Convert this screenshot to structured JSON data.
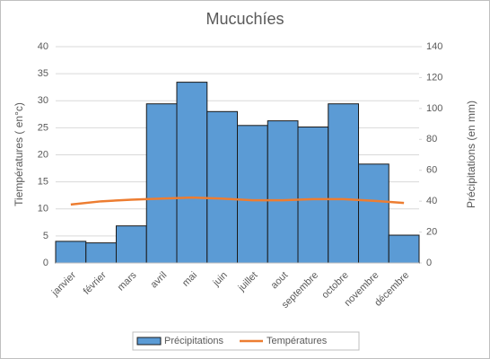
{
  "chart_data": {
    "type": "bar_line",
    "title": "Mucuchíes",
    "categories": [
      "janvier",
      "février",
      "mars",
      "avril",
      "mai",
      "juin",
      "juillet",
      "aout",
      "septembre",
      "octobre",
      "novembre",
      "décembre"
    ],
    "series": [
      {
        "name": "Précipitations",
        "type": "bar",
        "axis": "y2",
        "color": "#5b9bd5",
        "values": [
          14,
          13,
          24,
          103,
          117,
          98,
          89,
          92,
          88,
          103,
          64,
          18
        ]
      },
      {
        "name": "Températures",
        "type": "line",
        "color": "#ed7d31",
        "values": [
          10.8,
          11.4,
          11.7,
          11.9,
          12.1,
          11.9,
          11.6,
          11.6,
          11.8,
          11.8,
          11.5,
          11.1
        ]
      }
    ],
    "ylabel": "Tiempératures ( en°c)",
    "y2label": "Précipitations (en  mm)",
    "ylim": [
      0,
      40
    ],
    "yticks": [
      0,
      5,
      10,
      15,
      20,
      25,
      30,
      35,
      40
    ],
    "y2lim": [
      0,
      140
    ],
    "y2ticks": [
      0,
      20,
      40,
      60,
      80,
      100,
      120,
      140
    ],
    "grid": true,
    "legend": "bottom"
  }
}
